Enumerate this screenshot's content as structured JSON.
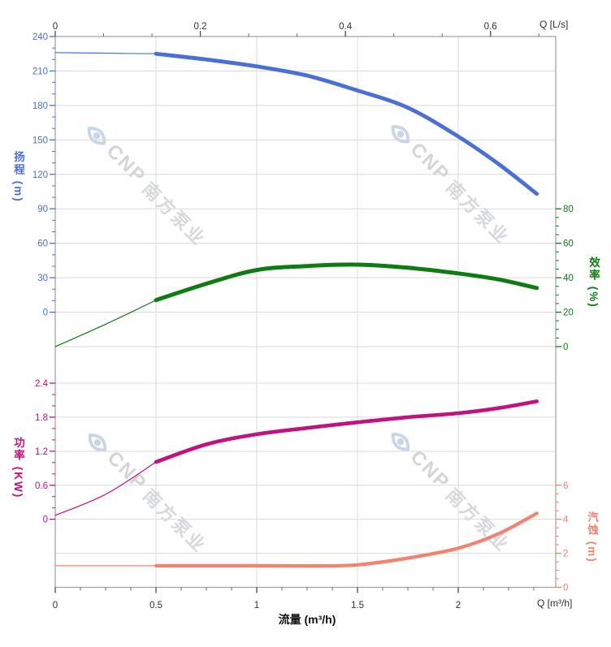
{
  "chart_data": {
    "type": "line",
    "title": "",
    "axes": {
      "x_bottom": {
        "label": "流量 (m³/h)",
        "corner_label": "Q [m³/h]",
        "ticks": [
          "0",
          "0.5",
          "1",
          "1.5",
          "2"
        ],
        "tick_values": [
          0,
          0.5,
          1,
          1.5,
          2
        ],
        "minor_step": 0.125,
        "range": [
          0,
          2.48
        ],
        "color": "#2e2e36"
      },
      "x_top": {
        "corner_label": "Q [L/s]",
        "ticks": [
          "0",
          "0.2",
          "0.4",
          "0.6"
        ],
        "tick_values": [
          0,
          0.2,
          0.4,
          0.6
        ],
        "range": [
          0,
          0.688
        ],
        "color": "#2e2e36"
      },
      "head": {
        "title": "扬程 (m)",
        "ticks": [
          "0",
          "30",
          "60",
          "90",
          "120",
          "150",
          "180",
          "210",
          "240"
        ],
        "tick_values": [
          0,
          30,
          60,
          90,
          120,
          150,
          180,
          210,
          240
        ],
        "minor_step": 10,
        "range": [
          0,
          240
        ],
        "color": "#4a6fd5"
      },
      "efficiency": {
        "title": "效率 (%)",
        "ticks": [
          "0",
          "20",
          "40",
          "60",
          "80"
        ],
        "tick_values": [
          0,
          20,
          40,
          60,
          80
        ],
        "minor_step": 5,
        "range": [
          0,
          80
        ],
        "color": "#0e7c12"
      },
      "power": {
        "title": "功率 (KW)",
        "ticks": [
          "0",
          "0.6",
          "1.2",
          "1.8",
          "2.4"
        ],
        "tick_values": [
          0,
          0.6,
          1.2,
          1.8,
          2.4
        ],
        "minor_step": 0.2,
        "range": [
          0,
          2.4
        ],
        "color": "#c2127f"
      },
      "npsh": {
        "title": "汽蚀 (m)",
        "ticks": [
          "0",
          "2",
          "4",
          "6"
        ],
        "tick_values": [
          0,
          2,
          4,
          6
        ],
        "minor_step": 0.5,
        "range": [
          0,
          6
        ],
        "color": "#f3826f"
      }
    },
    "grid": {
      "on": true,
      "color": "#dadada",
      "border_color": "#9e9e9e"
    },
    "series": [
      {
        "name": "head",
        "axis": "head",
        "color": "#4a6fd5",
        "thin_until_q": 0.5,
        "points": [
          [
            0,
            226
          ],
          [
            0.25,
            225.5
          ],
          [
            0.5,
            225
          ],
          [
            0.75,
            220
          ],
          [
            1,
            214
          ],
          [
            1.25,
            206
          ],
          [
            1.5,
            193
          ],
          [
            1.75,
            178
          ],
          [
            2,
            153
          ],
          [
            2.2,
            129
          ],
          [
            2.39,
            103
          ]
        ]
      },
      {
        "name": "efficiency",
        "axis": "efficiency",
        "color": "#0e7c12",
        "thin_until_q": 0.5,
        "points": [
          [
            0,
            0
          ],
          [
            0.25,
            13
          ],
          [
            0.5,
            27
          ],
          [
            0.75,
            36.5
          ],
          [
            1,
            44.5
          ],
          [
            1.25,
            46.8
          ],
          [
            1.5,
            47.6
          ],
          [
            1.75,
            45.8
          ],
          [
            2,
            42.5
          ],
          [
            2.2,
            39
          ],
          [
            2.39,
            34
          ]
        ]
      },
      {
        "name": "power",
        "axis": "power",
        "color": "#c2127f",
        "thin_until_q": 0.5,
        "points": [
          [
            0,
            0.07
          ],
          [
            0.25,
            0.44
          ],
          [
            0.5,
            1.01
          ],
          [
            0.75,
            1.32
          ],
          [
            1,
            1.5
          ],
          [
            1.25,
            1.61
          ],
          [
            1.5,
            1.71
          ],
          [
            1.75,
            1.8
          ],
          [
            2,
            1.87
          ],
          [
            2.2,
            1.96
          ],
          [
            2.39,
            2.08
          ]
        ]
      },
      {
        "name": "npsh",
        "axis": "npsh",
        "color": "#f3826f",
        "thin_until_q": 0.5,
        "points": [
          [
            0,
            1.27
          ],
          [
            0.5,
            1.27
          ],
          [
            1,
            1.27
          ],
          [
            1.3,
            1.26
          ],
          [
            1.5,
            1.32
          ],
          [
            1.75,
            1.72
          ],
          [
            2,
            2.3
          ],
          [
            2.2,
            3.15
          ],
          [
            2.39,
            4.35
          ]
        ]
      }
    ],
    "watermark": {
      "brand": "CNP",
      "brand_cn": "南方泵业"
    }
  }
}
